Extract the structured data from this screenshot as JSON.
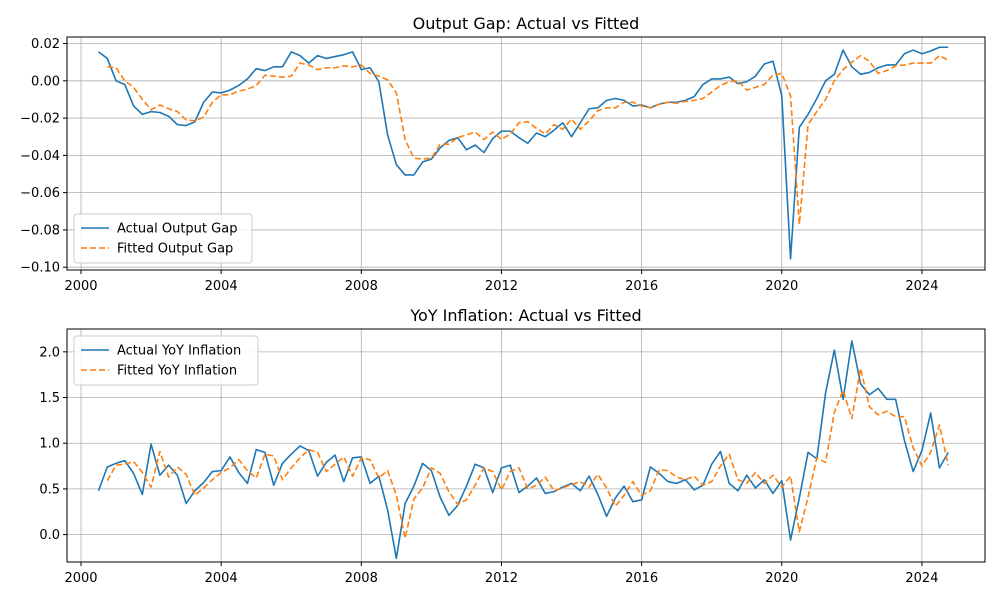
{
  "chart_data": [
    {
      "type": "line",
      "title": "Output Gap: Actual vs Fitted",
      "xlim": [
        1999.6,
        2025.8
      ],
      "ylim": [
        -0.1015,
        0.0235
      ],
      "x_ticks": [
        2000,
        2004,
        2008,
        2012,
        2016,
        2020,
        2024
      ],
      "x_tick_labels": [
        "2000",
        "2004",
        "2008",
        "2012",
        "2016",
        "2020",
        "2024"
      ],
      "y_ticks": [
        -0.1,
        -0.08,
        -0.06,
        -0.04,
        -0.02,
        0.0,
        0.02
      ],
      "y_tick_labels": [
        "−0.10",
        "−0.08",
        "−0.06",
        "−0.04",
        "−0.02",
        "0.00",
        "0.02"
      ],
      "grid": true,
      "legend_position": "lower-left",
      "series": [
        {
          "name": "Actual Output Gap",
          "color": "#1f77b4",
          "style": "solid",
          "x": [
            2000.5,
            2000.75,
            2001.0,
            2001.25,
            2001.5,
            2001.75,
            2002.0,
            2002.25,
            2002.5,
            2002.75,
            2003.0,
            2003.25,
            2003.5,
            2003.75,
            2004.0,
            2004.25,
            2004.5,
            2004.75,
            2005.0,
            2005.25,
            2005.5,
            2005.75,
            2006.0,
            2006.25,
            2006.5,
            2006.75,
            2007.0,
            2007.25,
            2007.5,
            2007.75,
            2008.0,
            2008.25,
            2008.5,
            2008.75,
            2009.0,
            2009.25,
            2009.5,
            2009.75,
            2010.0,
            2010.25,
            2010.5,
            2010.75,
            2011.0,
            2011.25,
            2011.5,
            2011.75,
            2012.0,
            2012.25,
            2012.5,
            2012.75,
            2013.0,
            2013.25,
            2013.5,
            2013.75,
            2014.0,
            2014.25,
            2014.5,
            2014.75,
            2015.0,
            2015.25,
            2015.5,
            2015.75,
            2016.0,
            2016.25,
            2016.5,
            2016.75,
            2017.0,
            2017.25,
            2017.5,
            2017.75,
            2018.0,
            2018.25,
            2018.5,
            2018.75,
            2019.0,
            2019.25,
            2019.5,
            2019.75,
            2020.0,
            2020.25,
            2020.5,
            2020.75,
            2021.0,
            2021.25,
            2021.5,
            2021.75,
            2022.0,
            2022.25,
            2022.5,
            2022.75,
            2023.0,
            2023.25,
            2023.5,
            2023.75,
            2024.0,
            2024.25,
            2024.5,
            2024.75
          ],
          "y": [
            0.0155,
            0.012,
            0.0,
            -0.002,
            -0.0135,
            -0.018,
            -0.0165,
            -0.017,
            -0.019,
            -0.0235,
            -0.024,
            -0.022,
            -0.0115,
            -0.006,
            -0.0065,
            -0.005,
            -0.0025,
            0.001,
            0.0065,
            0.0055,
            0.0075,
            0.0075,
            0.0155,
            0.0135,
            0.0095,
            0.0135,
            0.012,
            0.013,
            0.014,
            0.0155,
            0.006,
            0.007,
            -0.0005,
            -0.029,
            -0.045,
            -0.0505,
            -0.0505,
            -0.0435,
            -0.042,
            -0.036,
            -0.032,
            -0.0305,
            -0.037,
            -0.0345,
            -0.0385,
            -0.031,
            -0.027,
            -0.027,
            -0.0305,
            -0.0335,
            -0.028,
            -0.03,
            -0.0265,
            -0.0225,
            -0.03,
            -0.0225,
            -0.015,
            -0.0145,
            -0.0105,
            -0.0095,
            -0.0105,
            -0.0135,
            -0.013,
            -0.0145,
            -0.0125,
            -0.0115,
            -0.0115,
            -0.0105,
            -0.0085,
            -0.002,
            0.001,
            0.001,
            0.002,
            -0.0015,
            -0.0005,
            0.0025,
            0.009,
            0.0105,
            -0.008,
            -0.0955,
            -0.025,
            -0.018,
            -0.0095,
            0.0,
            0.0035,
            0.0165,
            0.0075,
            0.0035,
            0.0045,
            0.007,
            0.0085,
            0.0085,
            0.0145,
            0.0165,
            0.0145,
            0.016,
            0.018,
            0.018
          ]
        },
        {
          "name": "Fitted Output Gap",
          "color": "#ff7f0e",
          "style": "dashed",
          "x": [
            2000.75,
            2001.0,
            2001.25,
            2001.5,
            2001.75,
            2002.0,
            2002.25,
            2002.5,
            2002.75,
            2003.0,
            2003.25,
            2003.5,
            2003.75,
            2004.0,
            2004.25,
            2004.5,
            2004.75,
            2005.0,
            2005.25,
            2005.5,
            2005.75,
            2006.0,
            2006.25,
            2006.5,
            2006.75,
            2007.0,
            2007.25,
            2007.5,
            2007.75,
            2008.0,
            2008.25,
            2008.5,
            2008.75,
            2009.0,
            2009.25,
            2009.5,
            2009.75,
            2010.0,
            2010.25,
            2010.5,
            2010.75,
            2011.0,
            2011.25,
            2011.5,
            2011.75,
            2012.0,
            2012.25,
            2012.5,
            2012.75,
            2013.0,
            2013.25,
            2013.5,
            2013.75,
            2014.0,
            2014.25,
            2014.5,
            2014.75,
            2015.0,
            2015.25,
            2015.5,
            2015.75,
            2016.0,
            2016.25,
            2016.5,
            2016.75,
            2017.0,
            2017.25,
            2017.5,
            2017.75,
            2018.0,
            2018.25,
            2018.5,
            2018.75,
            2019.0,
            2019.25,
            2019.5,
            2019.75,
            2020.0,
            2020.25,
            2020.5,
            2020.75,
            2021.0,
            2021.25,
            2021.5,
            2021.75,
            2022.0,
            2022.25,
            2022.5,
            2022.75,
            2023.0,
            2023.25,
            2023.5,
            2023.75,
            2024.0,
            2024.25,
            2024.5,
            2024.75
          ],
          "y": [
            0.0075,
            0.007,
            0.0,
            -0.0035,
            -0.01,
            -0.0155,
            -0.013,
            -0.015,
            -0.0165,
            -0.021,
            -0.0215,
            -0.0195,
            -0.0115,
            -0.0075,
            -0.0075,
            -0.0055,
            -0.0045,
            -0.0025,
            0.003,
            0.0025,
            0.002,
            0.0025,
            0.0095,
            0.0085,
            0.006,
            0.007,
            0.007,
            0.008,
            0.0075,
            0.0085,
            0.004,
            0.0025,
            0.0005,
            -0.0065,
            -0.0315,
            -0.0415,
            -0.042,
            -0.0415,
            -0.034,
            -0.034,
            -0.0305,
            -0.029,
            -0.0275,
            -0.0315,
            -0.0275,
            -0.0315,
            -0.0285,
            -0.0225,
            -0.022,
            -0.0255,
            -0.0285,
            -0.0235,
            -0.026,
            -0.0205,
            -0.026,
            -0.0215,
            -0.016,
            -0.0145,
            -0.0145,
            -0.0115,
            -0.0115,
            -0.0135,
            -0.0145,
            -0.0125,
            -0.0115,
            -0.012,
            -0.011,
            -0.0105,
            -0.0095,
            -0.006,
            -0.0025,
            -0.0005,
            0.0,
            -0.005,
            -0.0035,
            -0.002,
            0.003,
            0.004,
            -0.008,
            -0.077,
            -0.0235,
            -0.0165,
            -0.01,
            0.0,
            0.006,
            0.01,
            0.0135,
            0.0105,
            0.004,
            0.0055,
            0.008,
            0.0085,
            0.0095,
            0.0095,
            0.0095,
            0.0135,
            0.011
          ]
        }
      ]
    },
    {
      "type": "line",
      "title": "YoY Inflation: Actual vs Fitted",
      "xlim": [
        1999.6,
        2025.8
      ],
      "ylim": [
        -0.3,
        2.25
      ],
      "x_ticks": [
        2000,
        2004,
        2008,
        2012,
        2016,
        2020,
        2024
      ],
      "x_tick_labels": [
        "2000",
        "2004",
        "2008",
        "2012",
        "2016",
        "2020",
        "2024"
      ],
      "y_ticks": [
        0.0,
        0.5,
        1.0,
        1.5,
        2.0
      ],
      "y_tick_labels": [
        "0.0",
        "0.5",
        "1.0",
        "1.5",
        "2.0"
      ],
      "grid": true,
      "legend_position": "upper-left",
      "series": [
        {
          "name": "Actual YoY Inflation",
          "color": "#1f77b4",
          "style": "solid",
          "x": [
            2000.5,
            2000.75,
            2001.0,
            2001.25,
            2001.5,
            2001.75,
            2002.0,
            2002.25,
            2002.5,
            2002.75,
            2003.0,
            2003.25,
            2003.5,
            2003.75,
            2004.0,
            2004.25,
            2004.5,
            2004.75,
            2005.0,
            2005.25,
            2005.5,
            2005.75,
            2006.0,
            2006.25,
            2006.5,
            2006.75,
            2007.0,
            2007.25,
            2007.5,
            2007.75,
            2008.0,
            2008.25,
            2008.5,
            2008.75,
            2009.0,
            2009.25,
            2009.5,
            2009.75,
            2010.0,
            2010.25,
            2010.5,
            2010.75,
            2011.0,
            2011.25,
            2011.5,
            2011.75,
            2012.0,
            2012.25,
            2012.5,
            2012.75,
            2013.0,
            2013.25,
            2013.5,
            2013.75,
            2014.0,
            2014.25,
            2014.5,
            2014.75,
            2015.0,
            2015.25,
            2015.5,
            2015.75,
            2016.0,
            2016.25,
            2016.5,
            2016.75,
            2017.0,
            2017.25,
            2017.5,
            2017.75,
            2018.0,
            2018.25,
            2018.5,
            2018.75,
            2019.0,
            2019.25,
            2019.5,
            2019.75,
            2020.0,
            2020.25,
            2020.5,
            2020.75,
            2021.0,
            2021.25,
            2021.5,
            2021.75,
            2022.0,
            2022.25,
            2022.5,
            2022.75,
            2023.0,
            2023.25,
            2023.5,
            2023.75,
            2024.0,
            2024.25,
            2024.5,
            2024.75
          ],
          "y": [
            0.48,
            0.74,
            0.78,
            0.81,
            0.67,
            0.44,
            0.99,
            0.65,
            0.76,
            0.65,
            0.34,
            0.48,
            0.57,
            0.69,
            0.7,
            0.85,
            0.68,
            0.56,
            0.93,
            0.9,
            0.54,
            0.78,
            0.88,
            0.97,
            0.92,
            0.64,
            0.79,
            0.87,
            0.58,
            0.84,
            0.85,
            0.56,
            0.64,
            0.27,
            -0.26,
            0.34,
            0.53,
            0.78,
            0.7,
            0.41,
            0.21,
            0.32,
            0.53,
            0.77,
            0.73,
            0.46,
            0.73,
            0.76,
            0.46,
            0.53,
            0.62,
            0.45,
            0.47,
            0.52,
            0.56,
            0.48,
            0.64,
            0.44,
            0.2,
            0.4,
            0.53,
            0.36,
            0.38,
            0.74,
            0.67,
            0.58,
            0.56,
            0.6,
            0.49,
            0.54,
            0.77,
            0.91,
            0.56,
            0.48,
            0.65,
            0.51,
            0.6,
            0.45,
            0.59,
            -0.06,
            0.4,
            0.9,
            0.83,
            1.55,
            2.02,
            1.48,
            2.12,
            1.65,
            1.53,
            1.6,
            1.48,
            1.48,
            1.03,
            0.69,
            0.92,
            1.33,
            0.73,
            0.9
          ]
        },
        {
          "name": "Fitted YoY Inflation",
          "color": "#ff7f0e",
          "style": "dashed",
          "x": [
            2000.75,
            2001.0,
            2001.25,
            2001.5,
            2001.75,
            2002.0,
            2002.25,
            2002.5,
            2002.75,
            2003.0,
            2003.25,
            2003.5,
            2003.75,
            2004.0,
            2004.25,
            2004.5,
            2004.75,
            2005.0,
            2005.25,
            2005.5,
            2005.75,
            2006.0,
            2006.25,
            2006.5,
            2006.75,
            2007.0,
            2007.25,
            2007.5,
            2007.75,
            2008.0,
            2008.25,
            2008.5,
            2008.75,
            2009.0,
            2009.25,
            2009.5,
            2009.75,
            2010.0,
            2010.25,
            2010.5,
            2010.75,
            2011.0,
            2011.25,
            2011.5,
            2011.75,
            2012.0,
            2012.25,
            2012.5,
            2012.75,
            2013.0,
            2013.25,
            2013.5,
            2013.75,
            2014.0,
            2014.25,
            2014.5,
            2014.75,
            2015.0,
            2015.25,
            2015.5,
            2015.75,
            2016.0,
            2016.25,
            2016.5,
            2016.75,
            2017.0,
            2017.25,
            2017.5,
            2017.75,
            2018.0,
            2018.25,
            2018.5,
            2018.75,
            2019.0,
            2019.25,
            2019.5,
            2019.75,
            2020.0,
            2020.25,
            2020.5,
            2020.75,
            2021.0,
            2021.25,
            2021.5,
            2021.75,
            2022.0,
            2022.25,
            2022.5,
            2022.75,
            2023.0,
            2023.25,
            2023.5,
            2023.75,
            2024.0,
            2024.25,
            2024.5,
            2024.75
          ],
          "y": [
            0.59,
            0.76,
            0.77,
            0.8,
            0.68,
            0.52,
            0.91,
            0.63,
            0.74,
            0.66,
            0.43,
            0.51,
            0.6,
            0.68,
            0.73,
            0.82,
            0.7,
            0.62,
            0.88,
            0.86,
            0.6,
            0.73,
            0.84,
            0.93,
            0.9,
            0.69,
            0.77,
            0.85,
            0.64,
            0.84,
            0.82,
            0.62,
            0.7,
            0.43,
            -0.04,
            0.39,
            0.51,
            0.73,
            0.67,
            0.47,
            0.33,
            0.38,
            0.54,
            0.73,
            0.69,
            0.49,
            0.69,
            0.73,
            0.5,
            0.54,
            0.63,
            0.48,
            0.51,
            0.55,
            0.58,
            0.52,
            0.66,
            0.51,
            0.31,
            0.43,
            0.58,
            0.43,
            0.48,
            0.71,
            0.7,
            0.63,
            0.6,
            0.64,
            0.54,
            0.58,
            0.75,
            0.88,
            0.6,
            0.56,
            0.68,
            0.56,
            0.65,
            0.52,
            0.64,
            0.03,
            0.41,
            0.84,
            0.79,
            1.34,
            1.58,
            1.27,
            1.82,
            1.4,
            1.31,
            1.35,
            1.29,
            1.29,
            0.95,
            0.75,
            0.9,
            1.2,
            0.76
          ]
        }
      ]
    }
  ]
}
